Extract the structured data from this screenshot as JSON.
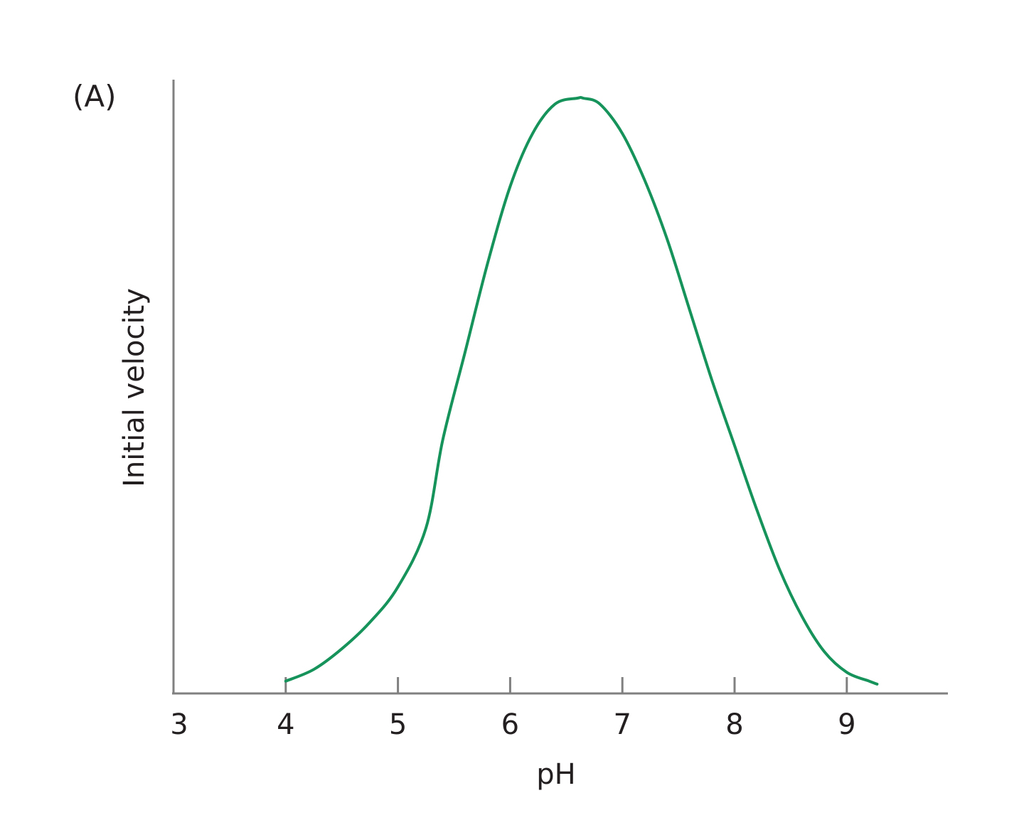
{
  "chart_data": {
    "type": "line",
    "panel_label": "(A)",
    "title": "",
    "xlabel": "pH",
    "ylabel": "Initial velocity",
    "xlim": [
      3,
      9.9
    ],
    "ylim": [
      0,
      1.05
    ],
    "x_ticks": [
      4,
      5,
      6,
      7,
      8,
      9
    ],
    "x_tick_labels": [
      "3",
      "4",
      "5",
      "6",
      "7",
      "8",
      "9"
    ],
    "x_tick_label_values": [
      3,
      4,
      5,
      6,
      7,
      8,
      9
    ],
    "grid": false,
    "legend": "none",
    "colors": {
      "curve": "#16935a",
      "axis": "#808080",
      "text": "#231f20"
    },
    "series": [
      {
        "x": [
          4.0,
          4.25,
          4.5,
          4.75,
          5.0,
          5.25,
          5.4,
          5.6,
          5.8,
          6.0,
          6.2,
          6.4,
          6.6,
          6.65,
          6.8,
          7.0,
          7.2,
          7.4,
          7.6,
          7.8,
          8.0,
          8.2,
          8.4,
          8.6,
          8.8,
          9.0,
          9.2,
          9.27
        ],
        "y": [
          0.01,
          0.03,
          0.065,
          0.11,
          0.17,
          0.27,
          0.42,
          0.57,
          0.72,
          0.85,
          0.94,
          0.99,
          1.0,
          1.0,
          0.99,
          0.94,
          0.86,
          0.76,
          0.64,
          0.52,
          0.41,
          0.3,
          0.2,
          0.12,
          0.06,
          0.025,
          0.01,
          0.005
        ]
      }
    ]
  }
}
